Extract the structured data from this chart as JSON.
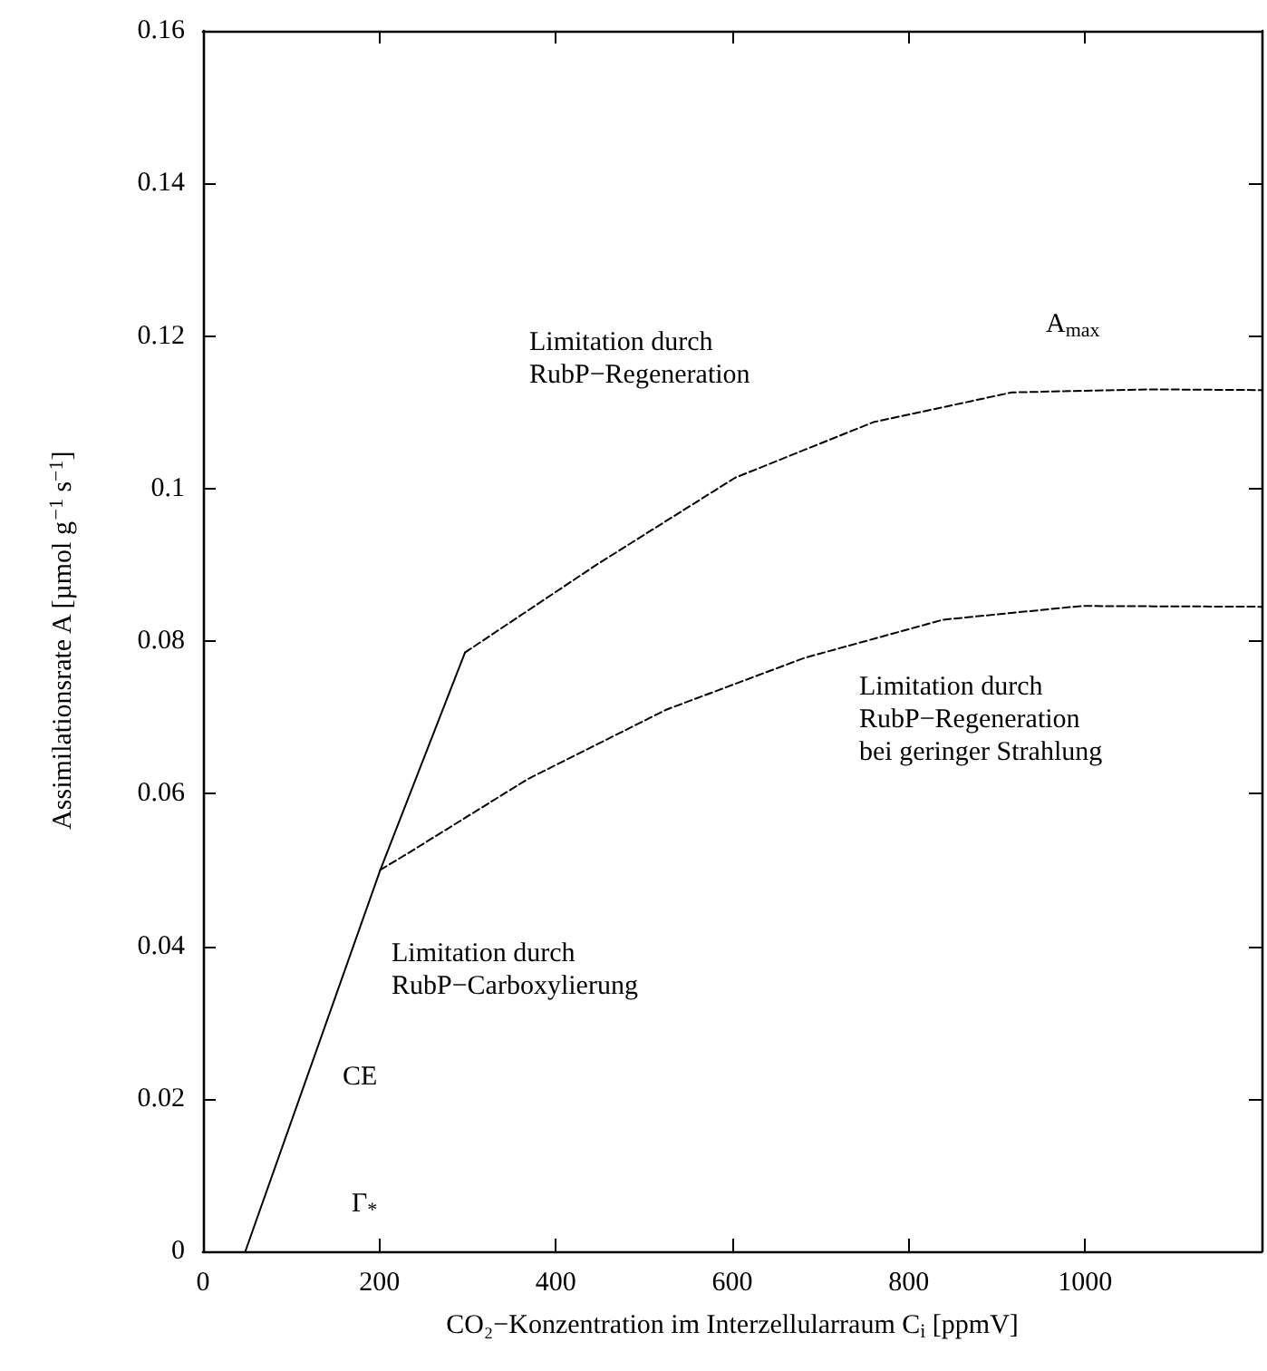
{
  "chart_data": {
    "type": "line",
    "xlabel": "CO₂−Konzentration im Interzellularraum C$_{i}$ [ppmV]",
    "ylabel": "Assimilationsrate A [µmol g$^{−1}$ s$^{−1}$]",
    "xlim": [
      0,
      1200
    ],
    "xticks": [
      0,
      200,
      400,
      600,
      800,
      1000
    ],
    "ylim": [
      0,
      0.16
    ],
    "yticks": [
      0,
      0.02,
      0.04,
      0.06,
      0.08,
      0.1,
      0.12,
      0.14,
      0.16
    ],
    "grid": false,
    "marker": "none",
    "series": [
      {
        "color": "#000000",
        "line_style": "solid",
        "x": [
          48,
          201,
          297
        ],
        "values": [
          0,
          0.05,
          0.0785
        ]
      },
      {
        "color": "#000000",
        "line_style": "dashed",
        "x": [
          297,
          446,
          603,
          760,
          917,
          1074,
          1200
        ],
        "values": [
          0.0785,
          0.09,
          0.1014,
          0.1087,
          0.1126,
          0.113,
          0.1129
        ]
      },
      {
        "color": "#000000",
        "line_style": "dashed",
        "x": [
          201,
          234,
          368,
          525,
          682,
          839,
          996,
          1200
        ],
        "values": [
          0.05,
          0.0523,
          0.0619,
          0.071,
          0.0778,
          0.0828,
          0.0846,
          0.0845
        ]
      }
    ],
    "annotations": [
      "Limitation durch\nRubP−Regeneration",
      "A$_{max}$",
      "Limitation durch\nRubP−Regeneration\nbei geringer Strahlung",
      "Limitation durch\nRubP−Carboxylierung",
      "CE",
      "Γ$_{*}$"
    ]
  }
}
